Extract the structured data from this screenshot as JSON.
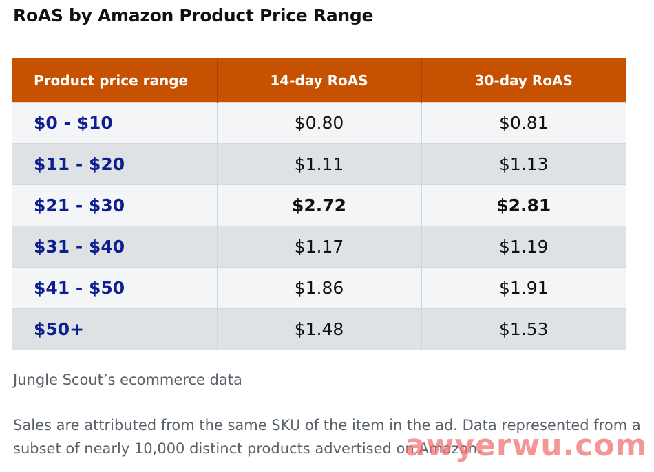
{
  "chart_data": {
    "type": "table",
    "title": "RoAS by Amazon Product Price Range",
    "columns": [
      "Product price range",
      "14-day RoAS",
      "30-day RoAS"
    ],
    "rows": [
      {
        "range": "$0 - $10",
        "roas_14": "$0.80",
        "roas_30": "$0.81",
        "highlight": false
      },
      {
        "range": "$11 - $20",
        "roas_14": "$1.11",
        "roas_30": "$1.13",
        "highlight": false
      },
      {
        "range": "$21 - $30",
        "roas_14": "$2.72",
        "roas_30": "$2.81",
        "highlight": true
      },
      {
        "range": "$31 - $40",
        "roas_14": "$1.17",
        "roas_30": "$1.19",
        "highlight": false
      },
      {
        "range": "$41 - $50",
        "roas_14": "$1.86",
        "roas_30": "$1.91",
        "highlight": false
      },
      {
        "range": "$50+",
        "roas_14": "$1.48",
        "roas_30": "$1.53",
        "highlight": false
      }
    ]
  },
  "source": "Jungle Scout’s ecommerce data",
  "note": "Sales are attributed from the same SKU of the item in the ad. Data represented from a subset of nearly 10,000 distinct products advertised on Amazon.",
  "watermark": "awyerwu.com",
  "colors": {
    "header_bg": "#c65100",
    "range_text": "#0d1f8f",
    "row_light": "#f4f5f6",
    "row_dark": "#dfe2e5"
  }
}
